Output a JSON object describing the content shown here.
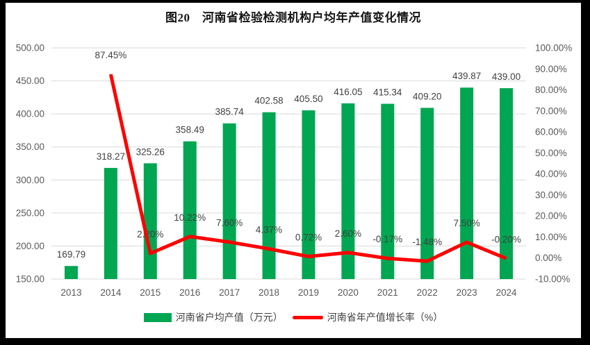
{
  "title": "图20　河南省检验检测机构户均年产值变化情况",
  "legend": [
    {
      "label": "河南省户均产值（万元）",
      "type": "bar",
      "color": "#00A651"
    },
    {
      "label": "河南省年产值增长率（%）",
      "type": "line",
      "color": "#FF0000"
    }
  ],
  "colors": {
    "bar": "#00A651",
    "line": "#FF0000",
    "grid": "#D9D9D9",
    "axis_text": "#595959",
    "data_label": "#404040",
    "frame": "#000000",
    "background": "#FFFFFF"
  },
  "chart_data": {
    "type": "bar+line combo",
    "title": "图20　河南省检验检测机构户均年产值变化情况",
    "categories": [
      "2013",
      "2014",
      "2015",
      "2016",
      "2017",
      "2018",
      "2019",
      "2020",
      "2021",
      "2022",
      "2023",
      "2024"
    ],
    "series": [
      {
        "name": "河南省户均产值（万元）",
        "type": "bar",
        "axis": "left",
        "color": "#00A651",
        "values": [
          169.79,
          318.27,
          325.26,
          358.49,
          385.74,
          402.58,
          405.5,
          416.05,
          415.34,
          409.2,
          439.87,
          439.0
        ],
        "labels": [
          "169.79",
          "318.27",
          "325.26",
          "358.49",
          "385.74",
          "402.58",
          "405.50",
          "416.05",
          "415.34",
          "409.20",
          "439.87",
          "439.00"
        ]
      },
      {
        "name": "河南省年产值增长率（%）",
        "type": "line",
        "axis": "right",
        "color": "#FF0000",
        "values": [
          null,
          87.45,
          2.2,
          10.22,
          7.6,
          4.37,
          0.72,
          2.6,
          -0.17,
          -1.48,
          7.5,
          -0.2
        ],
        "labels": [
          null,
          "87.45%",
          "2.20%",
          "10.22%",
          "7.60%",
          "4.37%",
          "0.72%",
          "2.60%",
          "-0.17%",
          "-1.48%",
          "7.50%",
          "-0.20%"
        ]
      }
    ],
    "left_axis": {
      "min": 150,
      "max": 500,
      "step": 50,
      "ticks": [
        "500.00",
        "450.00",
        "400.00",
        "350.00",
        "300.00",
        "250.00",
        "200.00",
        "150.00"
      ]
    },
    "right_axis": {
      "min": -10,
      "max": 100,
      "step": 10,
      "ticks": [
        "100.00%",
        "90.00%",
        "80.00%",
        "70.00%",
        "60.00%",
        "50.00%",
        "40.00%",
        "30.00%",
        "20.00%",
        "10.00%",
        "0.00%",
        "-10.00%"
      ]
    },
    "grid": true,
    "legend_position": "bottom"
  }
}
